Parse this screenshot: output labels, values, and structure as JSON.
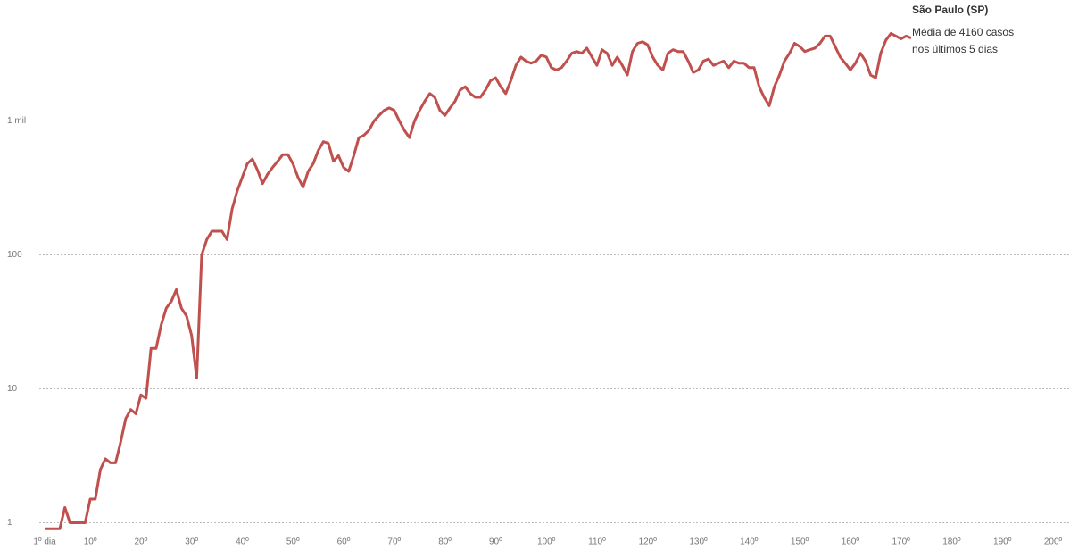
{
  "chart_data": {
    "type": "line",
    "annotations": [
      "São Paulo (SP)",
      "Média de 4160 casos",
      "nos últimos 5 dias"
    ],
    "log_scale": true,
    "grid": true,
    "xlim": [
      1,
      200
    ],
    "xticks": [
      {
        "value": 1,
        "label": "1º dia"
      },
      {
        "value": 10,
        "label": "10º"
      },
      {
        "value": 20,
        "label": "20º"
      },
      {
        "value": 30,
        "label": "30º"
      },
      {
        "value": 40,
        "label": "40º"
      },
      {
        "value": 50,
        "label": "50º"
      },
      {
        "value": 60,
        "label": "60º"
      },
      {
        "value": 70,
        "label": "70º"
      },
      {
        "value": 80,
        "label": "80º"
      },
      {
        "value": 90,
        "label": "90º"
      },
      {
        "value": 100,
        "label": "100º"
      },
      {
        "value": 110,
        "label": "110º"
      },
      {
        "value": 120,
        "label": "120º"
      },
      {
        "value": 130,
        "label": "130º"
      },
      {
        "value": 140,
        "label": "140º"
      },
      {
        "value": 150,
        "label": "150º"
      },
      {
        "value": 160,
        "label": "160º"
      },
      {
        "value": 170,
        "label": "170º"
      },
      {
        "value": 180,
        "label": "180º"
      },
      {
        "value": 190,
        "label": "190º"
      },
      {
        "value": 200,
        "label": "200º"
      }
    ],
    "ylim": [
      0.8,
      8000
    ],
    "yticks": [
      1,
      10,
      100,
      {
        "value": 1000,
        "label": "1 mil"
      }
    ],
    "x": [
      1,
      2,
      3,
      4,
      5,
      6,
      7,
      8,
      9,
      10,
      11,
      12,
      13,
      14,
      15,
      16,
      17,
      18,
      19,
      20,
      21,
      22,
      23,
      24,
      25,
      26,
      27,
      28,
      29,
      30,
      31,
      32,
      33,
      34,
      35,
      36,
      37,
      38,
      39,
      40,
      41,
      42,
      43,
      44,
      45,
      46,
      47,
      48,
      49,
      50,
      51,
      52,
      53,
      54,
      55,
      56,
      57,
      58,
      59,
      60,
      61,
      62,
      63,
      64,
      65,
      66,
      67,
      68,
      69,
      70,
      71,
      72,
      73,
      74,
      75,
      76,
      77,
      78,
      79,
      80,
      81,
      82,
      83,
      84,
      85,
      86,
      87,
      88,
      89,
      90,
      91,
      92,
      93,
      94,
      95,
      96,
      97,
      98,
      99,
      100,
      101,
      102,
      103,
      104,
      105,
      106,
      107,
      108,
      109,
      110,
      111,
      112,
      113,
      114,
      115,
      116,
      117,
      118,
      119,
      120,
      121,
      122,
      123,
      124,
      125,
      126,
      127,
      128,
      129,
      130,
      131,
      132,
      133,
      134,
      135,
      136,
      137,
      138,
      139,
      140,
      141,
      142,
      143,
      144,
      145,
      146,
      147,
      148,
      149,
      150,
      151,
      152,
      153,
      154,
      155,
      156,
      157,
      158,
      159,
      160,
      161,
      162,
      163,
      164,
      165,
      166,
      167,
      168,
      169,
      170,
      171,
      172
    ],
    "series": [
      {
        "color": "#c0504d",
        "values": [
          0.9,
          0.9,
          0.9,
          0.9,
          1.3,
          1.0,
          1.0,
          1.0,
          1.0,
          1.5,
          1.5,
          2.5,
          3,
          2.8,
          2.8,
          4,
          6,
          7,
          6.5,
          9,
          8.5,
          20,
          20,
          30,
          40,
          45,
          55,
          40,
          35,
          25,
          12,
          100,
          130,
          150,
          150,
          150,
          130,
          220,
          300,
          380,
          480,
          520,
          430,
          340,
          400,
          450,
          500,
          560,
          560,
          480,
          380,
          320,
          420,
          480,
          600,
          700,
          680,
          500,
          550,
          450,
          420,
          550,
          750,
          780,
          850,
          1000,
          1100,
          1200,
          1250,
          1200,
          1000,
          850,
          750,
          1000,
          1200,
          1400,
          1600,
          1500,
          1200,
          1100,
          1250,
          1400,
          1700,
          1800,
          1600,
          1500,
          1500,
          1700,
          2000,
          2100,
          1800,
          1600,
          2000,
          2600,
          3000,
          2800,
          2700,
          2800,
          3100,
          3000,
          2500,
          2400,
          2500,
          2800,
          3200,
          3300,
          3200,
          3500,
          3000,
          2600,
          3400,
          3200,
          2600,
          3000,
          2600,
          2200,
          3300,
          3800,
          3900,
          3700,
          3000,
          2600,
          2400,
          3200,
          3400,
          3300,
          3300,
          2800,
          2300,
          2400,
          2800,
          2900,
          2600,
          2700,
          2800,
          2500,
          2800,
          2700,
          2700,
          2500,
          2500,
          1800,
          1500,
          1300,
          1800,
          2200,
          2800,
          3200,
          3800,
          3600,
          3300,
          3400,
          3500,
          3800,
          4300,
          4300,
          3600,
          3000,
          2700,
          2400,
          2700,
          3200,
          2800,
          2200,
          2100,
          3200,
          4000,
          4500,
          4300,
          4100,
          4300,
          4160
        ]
      }
    ]
  }
}
